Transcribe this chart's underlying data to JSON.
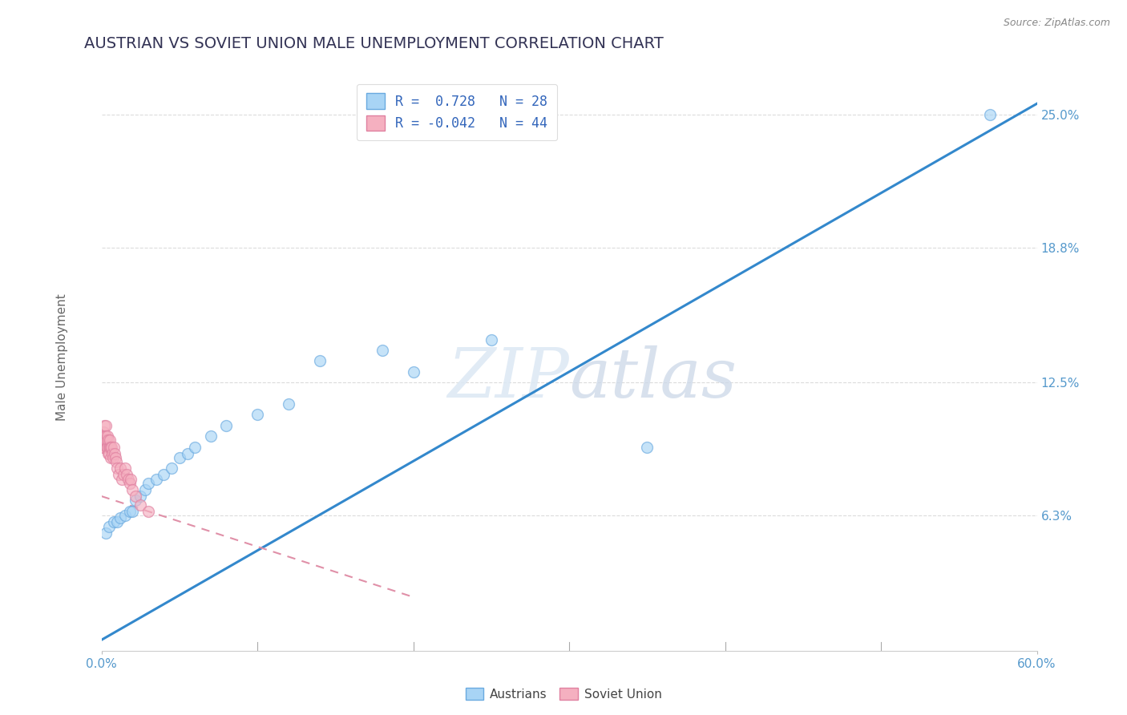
{
  "title": "AUSTRIAN VS SOVIET UNION MALE UNEMPLOYMENT CORRELATION CHART",
  "source_text": "Source: ZipAtlas.com",
  "ylabel": "Male Unemployment",
  "xlim": [
    0,
    60
  ],
  "ylim": [
    0,
    27
  ],
  "yticks": [
    6.3,
    12.5,
    18.8,
    25.0
  ],
  "xtick_positions": [
    0,
    60
  ],
  "xtick_labels": [
    "0.0%",
    "60.0%"
  ],
  "ytick_labels": [
    "6.3%",
    "12.5%",
    "18.8%",
    "25.0%"
  ],
  "austrians_x": [
    0.3,
    0.5,
    0.8,
    1.0,
    1.2,
    1.5,
    1.8,
    2.0,
    2.2,
    2.5,
    2.8,
    3.0,
    3.5,
    4.0,
    4.5,
    5.0,
    5.5,
    6.0,
    7.0,
    8.0,
    10.0,
    12.0,
    14.0,
    18.0,
    20.0,
    25.0,
    35.0,
    57.0
  ],
  "austrians_y": [
    5.5,
    5.8,
    6.0,
    6.0,
    6.2,
    6.3,
    6.5,
    6.5,
    7.0,
    7.2,
    7.5,
    7.8,
    8.0,
    8.2,
    8.5,
    9.0,
    9.2,
    9.5,
    10.0,
    10.5,
    11.0,
    11.5,
    13.5,
    14.0,
    13.0,
    14.5,
    9.5,
    25.0
  ],
  "soviet_x": [
    0.05,
    0.08,
    0.1,
    0.12,
    0.15,
    0.18,
    0.2,
    0.22,
    0.25,
    0.28,
    0.3,
    0.32,
    0.35,
    0.38,
    0.4,
    0.42,
    0.45,
    0.48,
    0.5,
    0.52,
    0.55,
    0.58,
    0.6,
    0.65,
    0.7,
    0.75,
    0.8,
    0.85,
    0.9,
    0.95,
    1.0,
    1.1,
    1.2,
    1.3,
    1.4,
    1.5,
    1.6,
    1.7,
    1.8,
    1.9,
    2.0,
    2.2,
    2.5,
    3.0
  ],
  "soviet_y": [
    9.5,
    9.8,
    10.0,
    9.5,
    10.2,
    9.8,
    10.5,
    10.0,
    9.8,
    10.5,
    10.0,
    9.5,
    9.8,
    10.0,
    9.5,
    9.2,
    9.8,
    9.5,
    9.2,
    9.5,
    9.8,
    9.5,
    9.0,
    9.5,
    9.2,
    9.0,
    9.5,
    9.2,
    9.0,
    8.8,
    8.5,
    8.2,
    8.5,
    8.0,
    8.2,
    8.5,
    8.2,
    8.0,
    7.8,
    8.0,
    7.5,
    7.2,
    6.8,
    6.5
  ],
  "austrians_color": "#a8d4f5",
  "austrians_edge_color": "#6aaae0",
  "soviet_color": "#f5b0c0",
  "soviet_edge_color": "#e080a0",
  "regression_blue_color": "#3388cc",
  "regression_pink_color": "#e090a8",
  "legend_r_austrians": "0.728",
  "legend_n_austrians": "28",
  "legend_r_soviet": "-0.042",
  "legend_n_soviet": "44",
  "watermark_zip": "ZIP",
  "watermark_atlas": "atlas",
  "background_color": "#ffffff",
  "grid_color": "#cccccc",
  "title_color": "#333355",
  "axis_label_color": "#666666",
  "tick_label_color": "#5599cc",
  "legend_text_color": "#3366bb",
  "marker_size": 100,
  "marker_alpha": 0.65
}
